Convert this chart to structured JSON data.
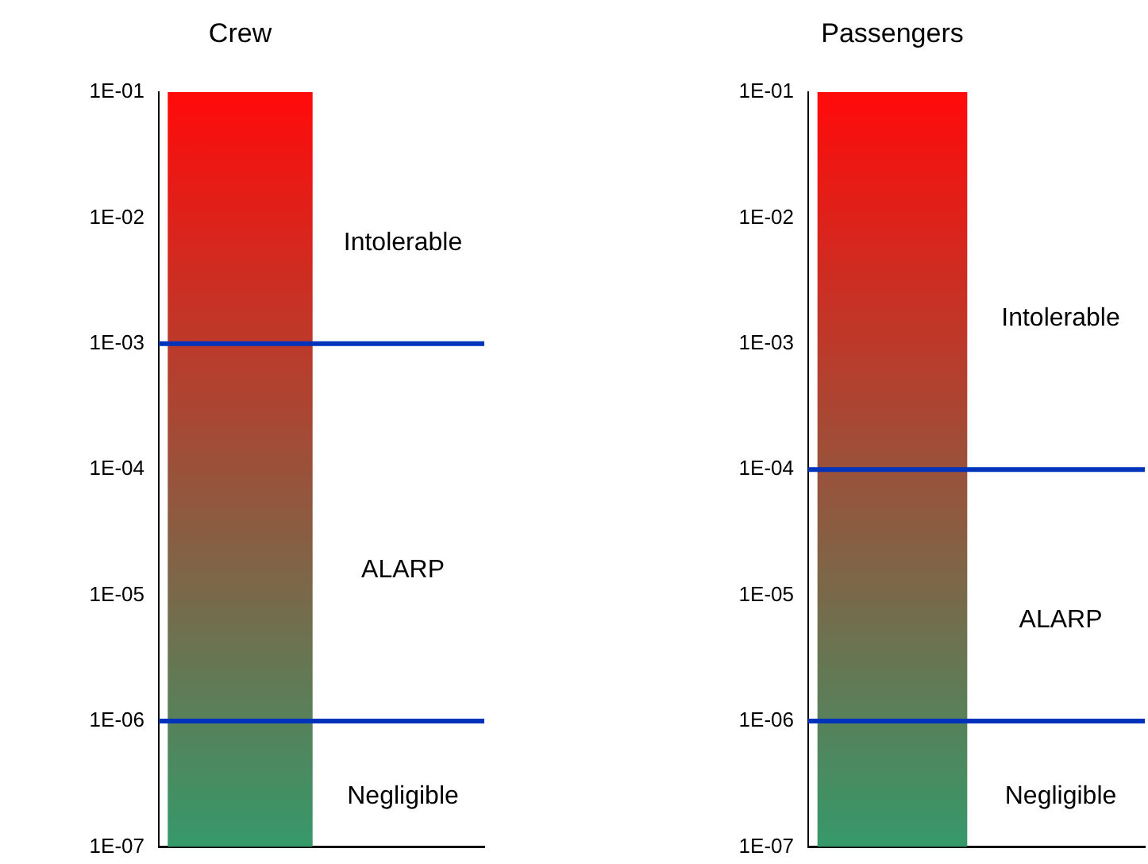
{
  "chart_data": [
    {
      "type": "bar",
      "title": "Crew",
      "categories": [
        null,
        null
      ],
      "values": [
        0.1,
        null
      ],
      "color": "#ff0a0a",
      "log": true,
      "ylim": [
        1e-07,
        0.1
      ],
      "yticks": [
        {
          "value": 0.1,
          "label": "1E-01"
        },
        {
          "value": 0.01,
          "label": "1E-02"
        },
        {
          "value": 0.001,
          "label": "1E-03"
        },
        {
          "value": 0.0001,
          "label": "1E-04"
        },
        {
          "value": 1e-05,
          "label": "1E-05"
        },
        {
          "value": 1e-06,
          "label": "1E-06"
        },
        {
          "value": 1e-07,
          "label": "1E-07"
        }
      ],
      "ref_lines": [
        {
          "axis": "y",
          "value": 0.001,
          "color": "#0033bb"
        },
        {
          "axis": "y",
          "value": 1e-06,
          "color": "#0033bb"
        }
      ],
      "annotations": [
        "Intolerable",
        "ALARP",
        "Negligible"
      ]
    },
    {
      "type": "bar",
      "title": "Passengers",
      "categories": [
        null,
        null
      ],
      "values": [
        0.1,
        null
      ],
      "color": "#ff0a0a",
      "log": true,
      "ylim": [
        1e-07,
        0.1
      ],
      "yticks": [
        {
          "value": 0.1,
          "label": "1E-01"
        },
        {
          "value": 0.01,
          "label": "1E-02"
        },
        {
          "value": 0.001,
          "label": "1E-03"
        },
        {
          "value": 0.0001,
          "label": "1E-04"
        },
        {
          "value": 1e-05,
          "label": "1E-05"
        },
        {
          "value": 1e-06,
          "label": "1E-06"
        },
        {
          "value": 1e-07,
          "label": "1E-07"
        }
      ],
      "ref_lines": [
        {
          "axis": "y",
          "value": 0.0001,
          "color": "#0033bb"
        },
        {
          "axis": "y",
          "value": 1e-06,
          "color": "#0033bb"
        }
      ],
      "annotations": [
        "Intolerable",
        "ALARP",
        "Negligible"
      ]
    }
  ]
}
